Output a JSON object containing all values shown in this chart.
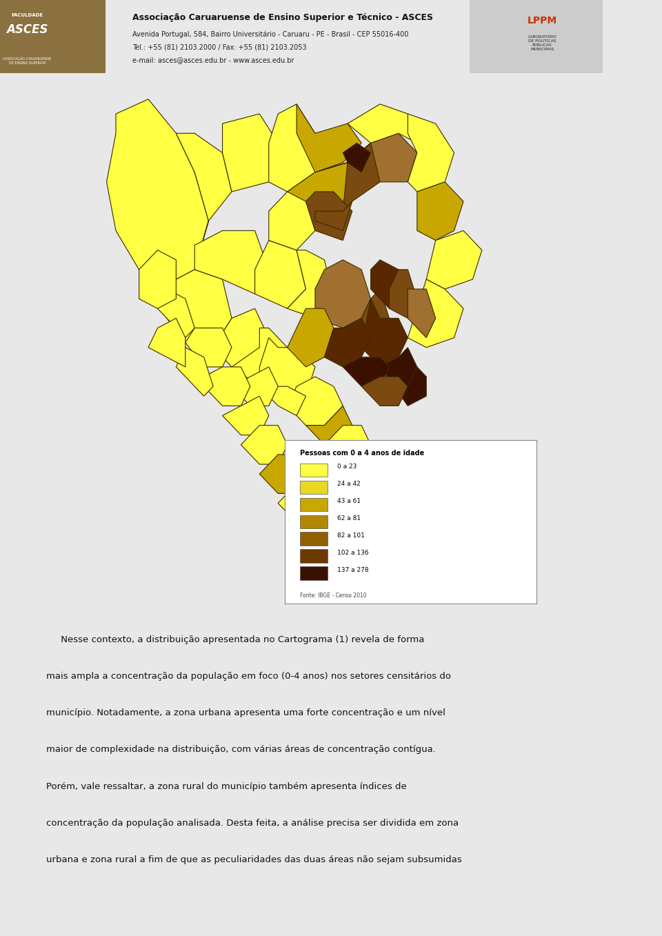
{
  "background_color": "#e8e8e8",
  "page_background": "#ffffff",
  "header": {
    "bg_color": "#cccccc",
    "institution": "Associação Caruaruense de Ensino Superior e Técnico - ASCES",
    "address": "Avenida Portugal, 584, Bairro Universitário - Caruaru - PE - Brasil - CEP 55016-400",
    "tel": "Tel.: +55 (81) 2103.2000 / Fax: +55 (81) 2103.2053",
    "email": "e-mail: asces@asces.edu.br - www.asces.edu.br"
  },
  "legend_title": "Pessoas com 0 a 4 anos de idade",
  "legend_items": [
    {
      "label": "0 a 23",
      "color": "#FFFF44"
    },
    {
      "label": "24 a 42",
      "color": "#E8D820"
    },
    {
      "label": "43 a 61",
      "color": "#C8A800"
    },
    {
      "label": "62 a 81",
      "color": "#B08800"
    },
    {
      "label": "82 a 101",
      "color": "#906000"
    },
    {
      "label": "102 a 136",
      "color": "#6B3A00"
    },
    {
      "label": "137 a 278",
      "color": "#3A1000"
    }
  ],
  "legend_source": "Fonte: IBGE - Censo 2010",
  "body_lines": [
    "     Nesse contexto, a distribuição apresentada no Cartograma (1) revela de forma",
    "mais ampla a concentração da população em foco (0-4 anos) nos setores censitários do",
    "município. Notadamente, a zona urbana apresenta uma forte concentração e um nível",
    "maior de complexidade na distribuição, com várias áreas de concentração contígua.",
    "Porém, vale ressaltar, a zona rural do município também apresenta índices de",
    "concentração da população analisada. Desta feita, a análise precisa ser dividida em zona",
    "urbana e zona rural a fim de que as peculiaridades das duas áreas não sejam subsumidas"
  ],
  "map_colors": {
    "light_yellow": "#FFFF44",
    "medium_yellow": "#E8D820",
    "dark_yellow": "#C8A800",
    "light_brown": "#A07030",
    "medium_brown": "#7B4A10",
    "dark_brown": "#5A2800",
    "very_dark": "#3A1000",
    "border": "#3a2a00"
  }
}
